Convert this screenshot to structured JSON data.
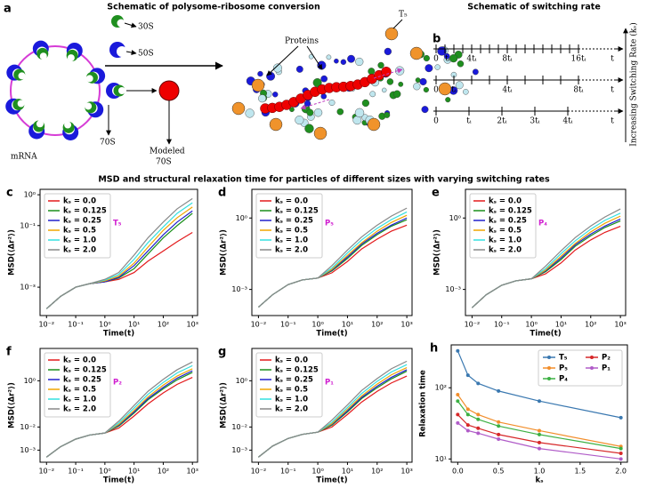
{
  "panels": {
    "a": "a",
    "b": "b"
  },
  "section_title": "MSD and structural relaxation time for particles of different sizes with varying switching rates",
  "schematic_a": {
    "title": "Schematic of polysome-ribosome conversion",
    "ribosome_30s": "30S",
    "ribosome_50s": "50S",
    "ribosome_70s": "70S",
    "modeled": "Modeled",
    "modeled_70s": "70S",
    "mrna": "mRNA",
    "proteins": "Proteins",
    "t5": "T₅"
  },
  "schematic_b": {
    "title": "Schematic of switching rate",
    "axis_end": "t",
    "arrow_label": "Increasing Switching Rate (kₛ)",
    "rows": [
      [
        "0",
        "tᵢ",
        "4tᵢ",
        "8tᵢ",
        "16tᵢ"
      ],
      [
        "0",
        "tᵢ",
        "4tᵢ",
        "8tᵢ"
      ],
      [
        "0",
        "tᵢ",
        "2tᵢ",
        "3tᵢ",
        "4tᵢ"
      ]
    ]
  },
  "chart_data": [
    {
      "type": "line",
      "panel": "c",
      "annotation": "T₅",
      "xlabel": "Time(t)",
      "ylabel": "MSD(⟨Δr²⟩)",
      "log_x": true,
      "log_y": true,
      "legend": "upper left",
      "x": [
        0.01,
        0.03,
        0.1,
        0.3,
        1,
        3,
        10,
        30,
        100,
        300,
        1000
      ],
      "xlim": [
        0.006,
        1500
      ],
      "ylim": [
        0.00012,
        1.5
      ],
      "xticks": [
        {
          "value": 0.01,
          "label": "10⁻²"
        },
        {
          "value": 0.1,
          "label": "10⁻¹"
        },
        {
          "value": 1,
          "label": "10⁰"
        },
        {
          "value": 10,
          "label": "10¹"
        },
        {
          "value": 100,
          "label": "10²"
        },
        {
          "value": 1000,
          "label": "10³"
        }
      ],
      "yticks": [
        {
          "value": 0.001,
          "label": "10⁻³"
        },
        {
          "value": 0.1,
          "label": "10⁻¹"
        },
        {
          "value": 1,
          "label": "10⁰"
        }
      ],
      "series": [
        {
          "name": "kₛ = 0.0",
          "color": "#e31a1c",
          "values": [
            0.0002,
            0.0005,
            0.001,
            0.0013,
            0.0015,
            0.0018,
            0.003,
            0.007,
            0.015,
            0.03,
            0.06
          ]
        },
        {
          "name": "kₛ = 0.125",
          "color": "#1a8f1a",
          "values": [
            0.0002,
            0.0005,
            0.001,
            0.0013,
            0.0015,
            0.002,
            0.004,
            0.012,
            0.04,
            0.1,
            0.25
          ]
        },
        {
          "name": "kₛ = 0.25",
          "color": "#2020cc",
          "values": [
            0.0002,
            0.0005,
            0.001,
            0.0013,
            0.0015,
            0.0021,
            0.005,
            0.015,
            0.05,
            0.13,
            0.3
          ]
        },
        {
          "name": "kₛ = 0.5",
          "color": "#f0a500",
          "values": [
            0.0002,
            0.0005,
            0.001,
            0.0013,
            0.0016,
            0.0023,
            0.006,
            0.02,
            0.07,
            0.18,
            0.4
          ]
        },
        {
          "name": "kₛ = 1.0",
          "color": "#33e0e0",
          "values": [
            0.0002,
            0.0005,
            0.001,
            0.0013,
            0.0017,
            0.0026,
            0.008,
            0.028,
            0.09,
            0.25,
            0.55
          ]
        },
        {
          "name": "kₛ = 2.0",
          "color": "#888888",
          "values": [
            0.0002,
            0.0005,
            0.001,
            0.0013,
            0.0018,
            0.003,
            0.011,
            0.04,
            0.13,
            0.35,
            0.75
          ]
        }
      ]
    },
    {
      "type": "line",
      "panel": "d",
      "annotation": "P₅",
      "xlabel": "Time(t)",
      "ylabel": "MSD(⟨Δr²⟩)",
      "log_x": true,
      "log_y": true,
      "legend": "upper left",
      "x": [
        0.01,
        0.03,
        0.1,
        0.3,
        1,
        3,
        10,
        30,
        100,
        300,
        1000
      ],
      "xlim": [
        0.006,
        1500
      ],
      "ylim": [
        8e-05,
        16
      ],
      "xticks": [
        {
          "value": 0.01,
          "label": "10⁻²"
        },
        {
          "value": 0.1,
          "label": "10⁻¹"
        },
        {
          "value": 1,
          "label": "10⁰"
        },
        {
          "value": 10,
          "label": "10¹"
        },
        {
          "value": 100,
          "label": "10²"
        },
        {
          "value": 1000,
          "label": "10³"
        }
      ],
      "yticks": [
        {
          "value": 0.001,
          "label": "10⁻³"
        },
        {
          "value": 1,
          "label": "10⁰"
        }
      ],
      "series": [
        {
          "name": "kₛ = 0.0",
          "color": "#e31a1c",
          "values": [
            0.00018,
            0.0006,
            0.0016,
            0.0025,
            0.003,
            0.005,
            0.015,
            0.05,
            0.13,
            0.28,
            0.5
          ]
        },
        {
          "name": "kₛ = 0.125",
          "color": "#1a8f1a",
          "values": [
            0.00018,
            0.0006,
            0.0016,
            0.0025,
            0.003,
            0.006,
            0.02,
            0.07,
            0.2,
            0.45,
            0.85
          ]
        },
        {
          "name": "kₛ = 0.25",
          "color": "#2020cc",
          "values": [
            0.00018,
            0.0006,
            0.0016,
            0.0025,
            0.003,
            0.0065,
            0.023,
            0.08,
            0.23,
            0.5,
            1.0
          ]
        },
        {
          "name": "kₛ = 0.5",
          "color": "#f0a500",
          "values": [
            0.00018,
            0.0006,
            0.0016,
            0.0025,
            0.003,
            0.007,
            0.027,
            0.09,
            0.28,
            0.65,
            1.3
          ]
        },
        {
          "name": "kₛ = 1.0",
          "color": "#33e0e0",
          "values": [
            0.00018,
            0.0006,
            0.0016,
            0.0025,
            0.003,
            0.008,
            0.034,
            0.12,
            0.37,
            0.85,
            1.8
          ]
        },
        {
          "name": "kₛ = 2.0",
          "color": "#888888",
          "values": [
            0.00018,
            0.0006,
            0.0016,
            0.0025,
            0.003,
            0.01,
            0.045,
            0.16,
            0.5,
            1.2,
            2.6
          ]
        }
      ]
    },
    {
      "type": "line",
      "panel": "e",
      "annotation": "P₄",
      "xlabel": "Time(t)",
      "ylabel": "MSD(⟨Δr²⟩)",
      "log_x": true,
      "log_y": true,
      "legend": "upper left",
      "x": [
        0.01,
        0.03,
        0.1,
        0.3,
        1,
        3,
        10,
        30,
        100,
        300,
        1000
      ],
      "xlim": [
        0.006,
        1500
      ],
      "ylim": [
        8e-05,
        16
      ],
      "xticks": [
        {
          "value": 0.01,
          "label": "10⁻²"
        },
        {
          "value": 0.1,
          "label": "10⁻¹"
        },
        {
          "value": 1,
          "label": "10⁰"
        },
        {
          "value": 10,
          "label": "10¹"
        },
        {
          "value": 100,
          "label": "10²"
        },
        {
          "value": 1000,
          "label": "10³"
        }
      ],
      "yticks": [
        {
          "value": 0.001,
          "label": "10⁻³"
        },
        {
          "value": 1,
          "label": "10⁰"
        }
      ],
      "series": [
        {
          "name": "kₛ = 0.0",
          "color": "#e31a1c",
          "values": [
            0.00017,
            0.0006,
            0.0015,
            0.0023,
            0.0028,
            0.0045,
            0.013,
            0.045,
            0.12,
            0.25,
            0.45
          ]
        },
        {
          "name": "kₛ = 0.125",
          "color": "#1a8f1a",
          "values": [
            0.00017,
            0.0006,
            0.0015,
            0.0023,
            0.0028,
            0.0055,
            0.018,
            0.065,
            0.18,
            0.4,
            0.75
          ]
        },
        {
          "name": "kₛ = 0.25",
          "color": "#2020cc",
          "values": [
            0.00017,
            0.0006,
            0.0015,
            0.0023,
            0.0028,
            0.006,
            0.021,
            0.075,
            0.21,
            0.46,
            0.9
          ]
        },
        {
          "name": "kₛ = 0.5",
          "color": "#f0a500",
          "values": [
            0.00017,
            0.0006,
            0.0015,
            0.0023,
            0.0028,
            0.0065,
            0.025,
            0.085,
            0.26,
            0.6,
            1.2
          ]
        },
        {
          "name": "kₛ = 1.0",
          "color": "#33e0e0",
          "values": [
            0.00017,
            0.0006,
            0.0015,
            0.0023,
            0.0028,
            0.0075,
            0.032,
            0.11,
            0.34,
            0.8,
            1.6
          ]
        },
        {
          "name": "kₛ = 2.0",
          "color": "#888888",
          "values": [
            0.00017,
            0.0006,
            0.0015,
            0.0023,
            0.0028,
            0.0095,
            0.042,
            0.15,
            0.46,
            1.1,
            2.4
          ]
        }
      ]
    },
    {
      "type": "line",
      "panel": "f",
      "annotation": "P₂",
      "xlabel": "Time(t)",
      "ylabel": "MSD(⟨Δr²⟩)",
      "log_x": true,
      "log_y": true,
      "legend": "upper left",
      "x": [
        0.01,
        0.03,
        0.1,
        0.3,
        1,
        3,
        10,
        30,
        100,
        300,
        1000
      ],
      "xlim": [
        0.006,
        1500
      ],
      "ylim": [
        0.0003,
        25
      ],
      "xticks": [
        {
          "value": 0.01,
          "label": "10⁻²"
        },
        {
          "value": 0.1,
          "label": "10⁻¹"
        },
        {
          "value": 1,
          "label": "10⁰"
        },
        {
          "value": 10,
          "label": "10¹"
        },
        {
          "value": 100,
          "label": "10²"
        },
        {
          "value": 1000,
          "label": "10³"
        }
      ],
      "yticks": [
        {
          "value": 0.001,
          "label": "10⁻³"
        },
        {
          "value": 0.01,
          "label": "10⁻²"
        },
        {
          "value": 1,
          "label": "10⁰"
        }
      ],
      "series": [
        {
          "name": "kₛ = 0.0",
          "color": "#e31a1c",
          "values": [
            0.0005,
            0.0014,
            0.003,
            0.0045,
            0.0055,
            0.009,
            0.03,
            0.1,
            0.3,
            0.7,
            1.4
          ]
        },
        {
          "name": "kₛ = 0.125",
          "color": "#1a8f1a",
          "values": [
            0.0005,
            0.0014,
            0.003,
            0.0045,
            0.0055,
            0.011,
            0.04,
            0.15,
            0.45,
            1.1,
            2.3
          ]
        },
        {
          "name": "kₛ = 0.25",
          "color": "#2020cc",
          "values": [
            0.0005,
            0.0014,
            0.003,
            0.0045,
            0.0055,
            0.012,
            0.045,
            0.17,
            0.52,
            1.3,
            2.7
          ]
        },
        {
          "name": "kₛ = 0.5",
          "color": "#f0a500",
          "values": [
            0.0005,
            0.0014,
            0.003,
            0.0045,
            0.0055,
            0.013,
            0.052,
            0.2,
            0.65,
            1.6,
            3.3
          ]
        },
        {
          "name": "kₛ = 1.0",
          "color": "#33e0e0",
          "values": [
            0.0005,
            0.0014,
            0.003,
            0.0045,
            0.0055,
            0.015,
            0.065,
            0.26,
            0.85,
            2.2,
            4.5
          ]
        },
        {
          "name": "kₛ = 2.0",
          "color": "#888888",
          "values": [
            0.0005,
            0.0014,
            0.003,
            0.0045,
            0.0055,
            0.018,
            0.085,
            0.35,
            1.15,
            3,
            6.5
          ]
        }
      ]
    },
    {
      "type": "line",
      "panel": "g",
      "annotation": "P₁",
      "xlabel": "Time(t)",
      "ylabel": "MSD(⟨Δr²⟩)",
      "log_x": true,
      "log_y": true,
      "legend": "upper left",
      "x": [
        0.01,
        0.03,
        0.1,
        0.3,
        1,
        3,
        10,
        30,
        100,
        300,
        1000
      ],
      "xlim": [
        0.006,
        1500
      ],
      "ylim": [
        0.0003,
        25
      ],
      "xticks": [
        {
          "value": 0.01,
          "label": "10⁻²"
        },
        {
          "value": 0.1,
          "label": "10⁻¹"
        },
        {
          "value": 1,
          "label": "10⁰"
        },
        {
          "value": 10,
          "label": "10¹"
        },
        {
          "value": 100,
          "label": "10²"
        },
        {
          "value": 1000,
          "label": "10³"
        }
      ],
      "yticks": [
        {
          "value": 0.001,
          "label": "10⁻³"
        },
        {
          "value": 0.01,
          "label": "10⁻²"
        },
        {
          "value": 1,
          "label": "10⁰"
        }
      ],
      "series": [
        {
          "name": "kₛ = 0.0",
          "color": "#e31a1c",
          "values": [
            0.0005,
            0.0015,
            0.0032,
            0.0048,
            0.006,
            0.01,
            0.035,
            0.12,
            0.35,
            0.8,
            1.6
          ]
        },
        {
          "name": "kₛ = 0.125",
          "color": "#1a8f1a",
          "values": [
            0.0005,
            0.0015,
            0.0032,
            0.0048,
            0.006,
            0.012,
            0.045,
            0.17,
            0.5,
            1.2,
            2.6
          ]
        },
        {
          "name": "kₛ = 0.25",
          "color": "#2020cc",
          "values": [
            0.0005,
            0.0015,
            0.0032,
            0.0048,
            0.006,
            0.013,
            0.05,
            0.19,
            0.58,
            1.4,
            3
          ]
        },
        {
          "name": "kₛ = 0.5",
          "color": "#f0a500",
          "values": [
            0.0005,
            0.0015,
            0.0032,
            0.0048,
            0.006,
            0.014,
            0.058,
            0.22,
            0.72,
            1.8,
            3.7
          ]
        },
        {
          "name": "kₛ = 1.0",
          "color": "#33e0e0",
          "values": [
            0.0005,
            0.0015,
            0.0032,
            0.0048,
            0.006,
            0.016,
            0.07,
            0.28,
            0.95,
            2.4,
            5
          ]
        },
        {
          "name": "kₛ = 2.0",
          "color": "#888888",
          "values": [
            0.0005,
            0.0015,
            0.0032,
            0.0048,
            0.006,
            0.02,
            0.09,
            0.38,
            1.25,
            3.3,
            7
          ]
        }
      ]
    },
    {
      "type": "line",
      "panel": "h",
      "xlabel": "kₛ",
      "ylabel": "Relaxation time",
      "log_x": false,
      "log_y": true,
      "legend": "upper right",
      "markers": true,
      "x": [
        0,
        0.125,
        0.25,
        0.5,
        1,
        2
      ],
      "xlim": [
        -0.08,
        2.08
      ],
      "ylim": [
        9,
        400
      ],
      "xticks": [
        {
          "value": 0,
          "label": "0.0"
        },
        {
          "value": 0.5,
          "label": "0.5"
        },
        {
          "value": 1,
          "label": "1.0"
        },
        {
          "value": 1.5,
          "label": "1.5"
        },
        {
          "value": 2,
          "label": "2.0"
        }
      ],
      "yticks": [
        {
          "value": 10,
          "label": "10¹"
        },
        {
          "value": 100,
          "label": "10²"
        }
      ],
      "series": [
        {
          "name": "T₅",
          "color": "#3a78b0",
          "values": [
            330,
            150,
            115,
            90,
            65,
            38
          ]
        },
        {
          "name": "P₅",
          "color": "#f28e2b",
          "values": [
            80,
            50,
            42,
            33,
            25,
            15
          ]
        },
        {
          "name": "P₄",
          "color": "#3cb043",
          "values": [
            65,
            42,
            36,
            29,
            22,
            14
          ]
        },
        {
          "name": "P₂",
          "color": "#d62728",
          "values": [
            42,
            30,
            27,
            22,
            17,
            12
          ]
        },
        {
          "name": "P₁",
          "color": "#b05cc8",
          "values": [
            32,
            25,
            23,
            19,
            14,
            10
          ]
        }
      ]
    }
  ]
}
